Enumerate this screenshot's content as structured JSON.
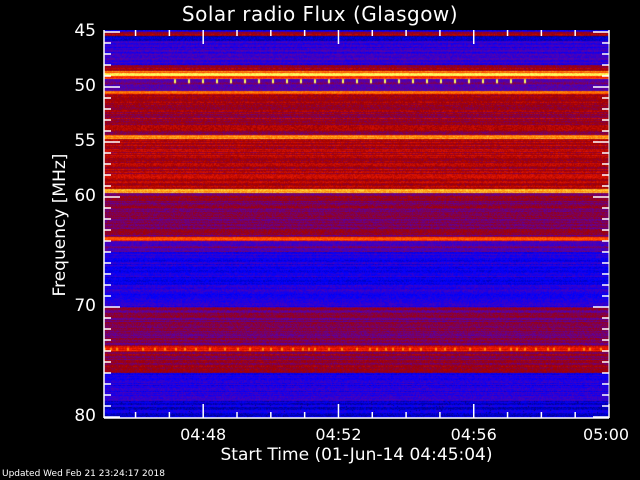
{
  "chart_data": {
    "type": "heatmap",
    "title": "Solar radio Flux (Glasgow)",
    "xlabel": "Start Time (01-Jun-14 04:45:04)",
    "ylabel": "Frequency [MHz]",
    "xlim": [
      "04:45:04",
      "05:00:00"
    ],
    "ylim": [
      45,
      80
    ],
    "y_inverted": true,
    "x_ticks": [
      "04:48",
      "04:52",
      "04:56",
      "05:00"
    ],
    "y_ticks": [
      45,
      50,
      55,
      60,
      70,
      80
    ],
    "colormap": [
      "#00006e",
      "#0000ff",
      "#5a00a8",
      "#a00000",
      "#ff2000",
      "#ff8000",
      "#ffff60"
    ],
    "bands": [
      {
        "from": 45.0,
        "to": 45.3,
        "level": 0.5
      },
      {
        "from": 45.3,
        "to": 45.8,
        "level": 0.08
      },
      {
        "from": 45.8,
        "to": 48.0,
        "level": 0.25
      },
      {
        "from": 48.0,
        "to": 48.5,
        "level": 0.48
      },
      {
        "from": 48.5,
        "to": 48.7,
        "level": 0.8
      },
      {
        "from": 48.7,
        "to": 49.0,
        "level": 1.0
      },
      {
        "from": 49.0,
        "to": 49.2,
        "level": 0.7
      },
      {
        "from": 49.2,
        "to": 50.3,
        "level": 0.35
      },
      {
        "from": 50.3,
        "to": 50.6,
        "level": 0.8
      },
      {
        "from": 50.6,
        "to": 54.3,
        "level": 0.48
      },
      {
        "from": 54.3,
        "to": 54.7,
        "level": 0.86
      },
      {
        "from": 54.7,
        "to": 59.2,
        "level": 0.52
      },
      {
        "from": 59.2,
        "to": 59.6,
        "level": 0.88
      },
      {
        "from": 59.6,
        "to": 63.6,
        "level": 0.42
      },
      {
        "from": 63.6,
        "to": 64.0,
        "level": 0.72
      },
      {
        "from": 64.0,
        "to": 65.0,
        "level": 0.35
      },
      {
        "from": 65.0,
        "to": 70.0,
        "level": 0.2
      },
      {
        "from": 70.0,
        "to": 73.5,
        "level": 0.4
      },
      {
        "from": 73.5,
        "to": 74.0,
        "level": 0.66
      },
      {
        "from": 74.0,
        "to": 76.0,
        "level": 0.45
      },
      {
        "from": 76.0,
        "to": 78.5,
        "level": 0.22
      },
      {
        "from": 78.5,
        "to": 80.0,
        "level": 0.14
      }
    ]
  },
  "footer": {
    "updated": "Updated Wed Feb 21 23:24:17 2018"
  }
}
